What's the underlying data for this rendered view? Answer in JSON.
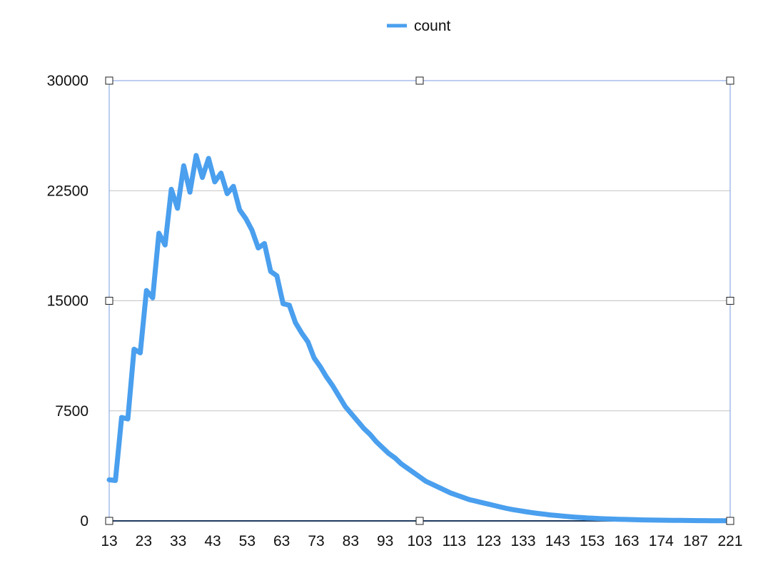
{
  "chart_data": {
    "type": "line",
    "title": "",
    "xlabel": "",
    "ylabel": "",
    "x_tick_labels": [
      "13",
      "23",
      "33",
      "43",
      "53",
      "63",
      "73",
      "83",
      "93",
      "103",
      "113",
      "123",
      "133",
      "143",
      "153",
      "163",
      "174",
      "187",
      "221"
    ],
    "y_ticks": [
      0,
      7500,
      15000,
      22500,
      30000
    ],
    "y_tick_labels": [
      "0",
      "7500",
      "15000",
      "22500",
      "30000"
    ],
    "ylim": [
      0,
      30000
    ],
    "grid": true,
    "legend_position": "top-center",
    "series": [
      {
        "name": "count",
        "color": "#4a9fee",
        "values": [
          2800,
          2750,
          7050,
          6950,
          11700,
          11450,
          15700,
          15200,
          19600,
          18800,
          22600,
          21300,
          24200,
          22400,
          24900,
          23400,
          24700,
          23100,
          23700,
          22300,
          22800,
          21200,
          20600,
          19800,
          18600,
          18900,
          17000,
          16700,
          14800,
          14700,
          13500,
          12800,
          12200,
          11100,
          10500,
          9800,
          9200,
          8500,
          7800,
          7300,
          6800,
          6300,
          5900,
          5400,
          5000,
          4600,
          4300,
          3900,
          3600,
          3300,
          3000,
          2700,
          2500,
          2300,
          2100,
          1900,
          1750,
          1600,
          1450,
          1350,
          1250,
          1150,
          1050,
          950,
          850,
          770,
          700,
          630,
          570,
          510,
          460,
          410,
          370,
          330,
          290,
          260,
          230,
          200,
          180,
          160,
          140,
          125,
          110,
          100,
          90,
          80,
          70,
          60,
          55,
          50,
          45,
          40,
          35,
          30,
          25,
          20,
          18,
          16,
          14,
          12,
          10
        ]
      }
    ]
  }
}
